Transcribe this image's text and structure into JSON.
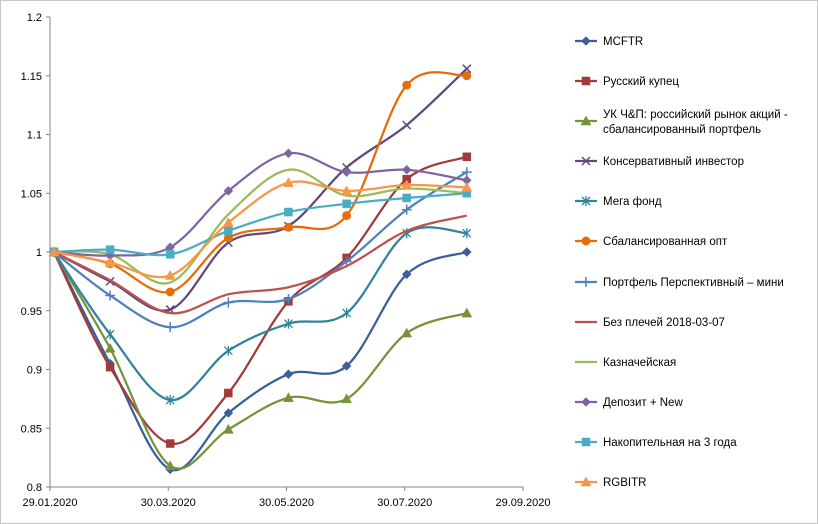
{
  "chart_data": {
    "type": "line",
    "smooth": true,
    "x_axis": {
      "min": "2020-01-29",
      "max": "2020-09-29",
      "tick_labels": [
        "29.01.2020",
        "30.03.2020",
        "30.05.2020",
        "30.07.2020",
        "29.09.2020"
      ],
      "ticks": [
        "2020-01-29",
        "2020-03-30",
        "2020-05-30",
        "2020-07-30",
        "2020-09-29"
      ]
    },
    "y_axis": {
      "min": 0.8,
      "max": 1.2,
      "step": 0.05,
      "tick_labels": [
        "0.8",
        "0.85",
        "0.9",
        "0.95",
        "1",
        "1.05",
        "1.1",
        "1.15",
        "1.2"
      ]
    },
    "grid": false,
    "legend_position": "right",
    "x": [
      "2020-01-31",
      "2020-02-29",
      "2020-03-31",
      "2020-04-30",
      "2020-05-31",
      "2020-06-30",
      "2020-07-31",
      "2020-08-31"
    ],
    "series": [
      {
        "name": "MCFTR",
        "color": "#3A5F9B",
        "marker": "diamond",
        "values": [
          1.0,
          0.905,
          0.815,
          0.863,
          0.896,
          0.903,
          0.981,
          1.0
        ]
      },
      {
        "name": "Русский купец",
        "color": "#A33A3A",
        "marker": "square",
        "values": [
          1.0,
          0.902,
          0.837,
          0.88,
          0.958,
          0.995,
          1.062,
          1.081
        ]
      },
      {
        "name": "УК Ч&П: российский рынок акций - сбалансированный портфель",
        "color": "#76933C",
        "marker": "triangle",
        "values": [
          1.0,
          0.918,
          0.818,
          0.849,
          0.876,
          0.875,
          0.931,
          0.948
        ]
      },
      {
        "name": "Консервативный инвестор",
        "color": "#604A7B",
        "marker": "x",
        "values": [
          1.0,
          0.975,
          0.951,
          1.008,
          1.022,
          1.072,
          1.108,
          1.156
        ]
      },
      {
        "name": "Мега фонд",
        "color": "#31849B",
        "marker": "star",
        "values": [
          1.0,
          0.93,
          0.874,
          0.916,
          0.939,
          0.948,
          1.016,
          1.016
        ]
      },
      {
        "name": "Сбалансированная опт",
        "color": "#E46C0A",
        "marker": "circle",
        "values": [
          1.0,
          0.99,
          0.966,
          1.012,
          1.021,
          1.031,
          1.142,
          1.15
        ]
      },
      {
        "name": "Портфель  Перспективный  – мини",
        "color": "#4F81BD",
        "marker": "plus",
        "values": [
          1.0,
          0.963,
          0.936,
          0.957,
          0.96,
          0.992,
          1.036,
          1.068
        ]
      },
      {
        "name": "Без плечей  2018-03-07",
        "color": "#C0504D",
        "marker": "none",
        "values": [
          1.0,
          0.976,
          0.948,
          0.964,
          0.97,
          0.988,
          1.018,
          1.031
        ]
      },
      {
        "name": "Казначейская",
        "color": "#9BBB59",
        "marker": "none",
        "values": [
          1.0,
          0.998,
          0.974,
          1.032,
          1.07,
          1.048,
          1.054,
          1.05
        ]
      },
      {
        "name": "Депозит + New",
        "color": "#8064A2",
        "marker": "diamond",
        "values": [
          1.0,
          0.997,
          1.004,
          1.052,
          1.084,
          1.068,
          1.07,
          1.061
        ]
      },
      {
        "name": "Накопительная на 3 года",
        "color": "#4BACC6",
        "marker": "square",
        "values": [
          1.0,
          1.002,
          0.998,
          1.018,
          1.034,
          1.041,
          1.046,
          1.05
        ]
      },
      {
        "name": "RGBITR",
        "color": "#F79646",
        "marker": "triangle",
        "values": [
          1.0,
          0.991,
          0.98,
          1.025,
          1.059,
          1.052,
          1.057,
          1.055
        ]
      }
    ]
  }
}
